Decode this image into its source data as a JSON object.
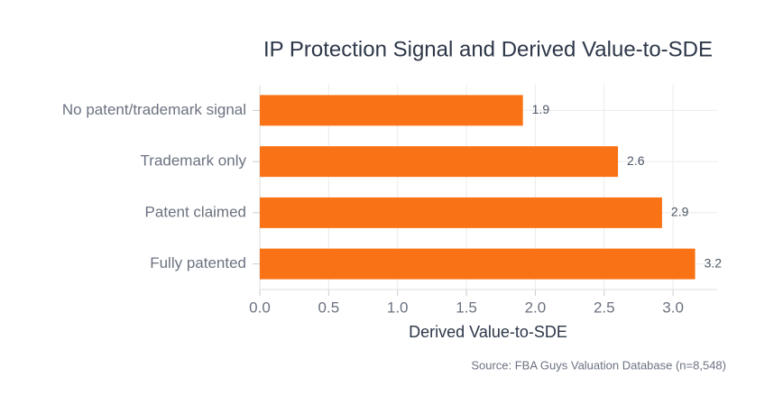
{
  "chart_data": {
    "type": "bar",
    "orientation": "horizontal",
    "title": "IP Protection Signal and Derived Value-to-SDE",
    "x_label": "Derived Value-to-SDE",
    "source": "Source: FBA Guys Valuation Database (n=8,548)",
    "categories": [
      "No patent/trademark signal",
      "Trademark only",
      "Patent claimed",
      "Fully patented"
    ],
    "values": [
      1.91,
      2.6,
      2.92,
      3.16
    ],
    "value_labels": [
      "1.9",
      "2.6",
      "2.9",
      "3.2"
    ],
    "color": "#f97316",
    "xlim": [
      0,
      3.32
    ],
    "xticks": [
      {
        "value": 0,
        "label": "0.0"
      },
      {
        "value": 0.5,
        "label": "0.5"
      },
      {
        "value": 1,
        "label": "1.0"
      },
      {
        "value": 1.5,
        "label": "1.5"
      },
      {
        "value": 2,
        "label": "2.0"
      },
      {
        "value": 2.5,
        "label": "2.5"
      },
      {
        "value": 3,
        "label": "3.0"
      }
    ],
    "grid": true
  }
}
